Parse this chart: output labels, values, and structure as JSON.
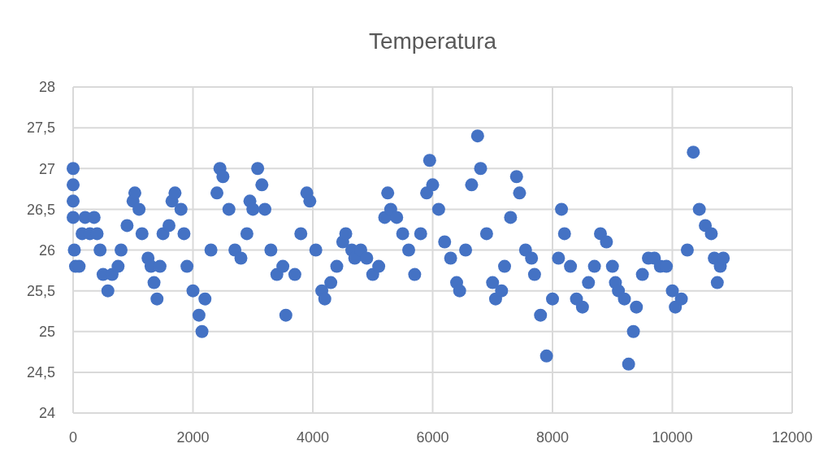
{
  "chart_data": {
    "type": "scatter",
    "title": "Temperatura",
    "marker": "circle",
    "grid": true,
    "xlim": [
      0,
      12000
    ],
    "xticks": [
      0,
      2000,
      4000,
      6000,
      8000,
      10000,
      12000
    ],
    "ylim": [
      24,
      28
    ],
    "yticks": [
      24,
      {
        "value": 24.5,
        "label": "24,5"
      },
      25,
      {
        "value": 25.5,
        "label": "25,5"
      },
      26,
      {
        "value": 26.5,
        "label": "26,5"
      },
      27,
      {
        "value": 27.5,
        "label": "27,5"
      },
      28
    ],
    "series": [
      {
        "color": "#4472c4",
        "x": [
          0,
          0,
          0,
          0,
          20,
          40,
          100,
          150,
          200,
          280,
          350,
          400,
          450,
          500,
          580,
          650,
          750,
          800,
          900,
          1000,
          1030,
          1100,
          1150,
          1250,
          1300,
          1350,
          1400,
          1450,
          1500,
          1600,
          1650,
          1700,
          1800,
          1850,
          1900,
          2000,
          2100,
          2150,
          2200,
          2300,
          2400,
          2450,
          2500,
          2600,
          2700,
          2800,
          2900,
          2950,
          3000,
          3080,
          3150,
          3200,
          3300,
          3400,
          3500,
          3550,
          3700,
          3800,
          3900,
          3950,
          4050,
          4150,
          4200,
          4300,
          4400,
          4500,
          4550,
          4650,
          4700,
          4800,
          4900,
          5000,
          5100,
          5200,
          5250,
          5300,
          5400,
          5500,
          5600,
          5700,
          5800,
          5900,
          5950,
          6000,
          6100,
          6200,
          6300,
          6400,
          6450,
          6550,
          6650,
          6750,
          6800,
          6900,
          7000,
          7050,
          7150,
          7200,
          7300,
          7400,
          7450,
          7550,
          7650,
          7700,
          7800,
          7900,
          8000,
          8100,
          8150,
          8200,
          8300,
          8400,
          8500,
          8600,
          8700,
          8800,
          8900,
          9000,
          9050,
          9100,
          9200,
          9270,
          9350,
          9400,
          9500,
          9600,
          9700,
          9800,
          9900,
          10000,
          10050,
          10150,
          10250,
          10350,
          10450,
          10550,
          10650,
          10700,
          10750,
          10800,
          10850
        ],
        "values": [
          27.0,
          26.8,
          26.6,
          26.4,
          26.0,
          25.8,
          25.8,
          26.2,
          26.4,
          26.2,
          26.4,
          26.2,
          26.0,
          25.7,
          25.5,
          25.7,
          25.8,
          26.0,
          26.3,
          26.6,
          26.7,
          26.5,
          26.2,
          25.9,
          25.8,
          25.6,
          25.4,
          25.8,
          26.2,
          26.3,
          26.6,
          26.7,
          26.5,
          26.2,
          25.8,
          25.5,
          25.2,
          25.0,
          25.4,
          26.0,
          26.7,
          27.0,
          26.9,
          26.5,
          26.0,
          25.9,
          26.2,
          26.6,
          26.5,
          27.0,
          26.8,
          26.5,
          26.0,
          25.7,
          25.8,
          25.2,
          25.7,
          26.2,
          26.7,
          26.6,
          26.0,
          25.5,
          25.4,
          25.6,
          25.8,
          26.1,
          26.2,
          26.0,
          25.9,
          26.0,
          25.9,
          25.7,
          25.8,
          26.4,
          26.7,
          26.5,
          26.4,
          26.2,
          26.0,
          25.7,
          26.2,
          26.7,
          27.1,
          26.8,
          26.5,
          26.1,
          25.9,
          25.6,
          25.5,
          26.0,
          26.8,
          27.4,
          27.0,
          26.2,
          25.6,
          25.4,
          25.5,
          25.8,
          26.4,
          26.9,
          26.7,
          26.0,
          25.9,
          25.7,
          25.2,
          24.7,
          25.4,
          25.9,
          26.5,
          26.2,
          25.8,
          25.4,
          25.3,
          25.6,
          25.8,
          26.2,
          26.1,
          25.8,
          25.6,
          25.5,
          25.4,
          24.6,
          25.0,
          25.3,
          25.7,
          25.9,
          25.9,
          25.8,
          25.8,
          25.5,
          25.3,
          25.4,
          26.0,
          27.2,
          26.5,
          26.3,
          26.2,
          25.9,
          25.6,
          25.8,
          25.9
        ]
      }
    ]
  }
}
